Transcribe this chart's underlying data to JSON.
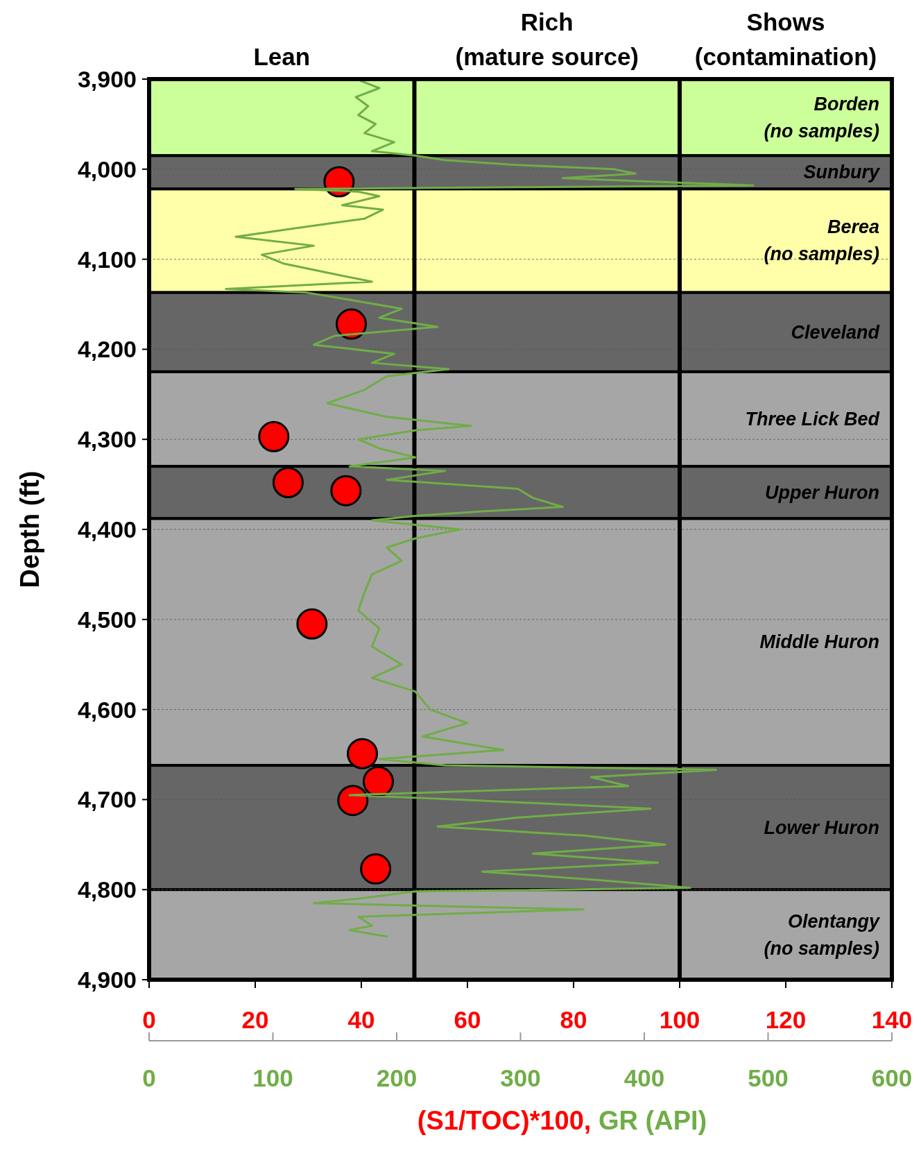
{
  "chart_data": {
    "type": "scatter",
    "ylabel": "Depth (ft)",
    "xlabel": "(S1/TOC)*100,",
    "x2label": "GR (API)",
    "xlim": [
      0,
      140
    ],
    "xticks": [
      0,
      20,
      40,
      60,
      80,
      100,
      120,
      140
    ],
    "x2lim": [
      0,
      600
    ],
    "x2ticks": [
      0,
      100,
      200,
      300,
      400,
      500,
      600
    ],
    "ylim": [
      4900,
      3900
    ],
    "yticks": [
      {
        "value": 3900,
        "label": "3,900"
      },
      {
        "value": 4000,
        "label": "4,000"
      },
      {
        "value": 4100,
        "label": "4,100"
      },
      {
        "value": 4200,
        "label": "4,200"
      },
      {
        "value": 4300,
        "label": "4,300"
      },
      {
        "value": 4400,
        "label": "4,400"
      },
      {
        "value": 4500,
        "label": "4,500"
      },
      {
        "value": 4600,
        "label": "4,600"
      },
      {
        "value": 4700,
        "label": "4,700"
      },
      {
        "value": 4800,
        "label": "4,800"
      },
      {
        "value": 4900,
        "label": "4,900"
      }
    ],
    "grid": "y",
    "marker": "circle",
    "bands": [
      {
        "axis": "y",
        "from": 3900,
        "to": 3985,
        "label": "Borden\n(no samples)",
        "color": "#ccff99"
      },
      {
        "axis": "y",
        "from": 3985,
        "to": 4022,
        "label": "Sunbury",
        "color": "#666666"
      },
      {
        "axis": "y",
        "from": 4022,
        "to": 4137,
        "label": "Berea\n(no samples)",
        "color": "#ffffaa"
      },
      {
        "axis": "y",
        "from": 4137,
        "to": 4225,
        "label": "Cleveland",
        "color": "#666666"
      },
      {
        "axis": "y",
        "from": 4225,
        "to": 4330,
        "label": "Three Lick Bed",
        "color": "#a6a6a6"
      },
      {
        "axis": "y",
        "from": 4330,
        "to": 4388,
        "label": "Upper Huron",
        "color": "#666666"
      },
      {
        "axis": "y",
        "from": 4388,
        "to": 4662,
        "label": "Middle Huron",
        "color": "#a6a6a6"
      },
      {
        "axis": "y",
        "from": 4662,
        "to": 4800,
        "label": "Lower Huron",
        "color": "#666666"
      },
      {
        "axis": "y",
        "from": 4800,
        "to": 4900,
        "label": "Olentangy\n(no samples)",
        "color": "#a6a6a6"
      }
    ],
    "ref_lines": [
      {
        "axis": "x",
        "value": 50,
        "color": "#000000"
      },
      {
        "axis": "x",
        "value": 100,
        "color": "#000000"
      }
    ],
    "annotations": [
      {
        "text": "Lean",
        "x": 25,
        "y": 3900
      },
      {
        "text": "Rich\n(mature source)",
        "x": 75,
        "y": 3900
      },
      {
        "text": "Shows\n(contamination)",
        "x": 120,
        "y": 3900
      }
    ],
    "series": [
      {
        "type": "line",
        "axis": "x2",
        "color": "#70ad47",
        "marker": "none",
        "values": [
          3902,
          3910,
          3920,
          3930,
          3940,
          3950,
          3960,
          3970,
          3980,
          3985,
          3990,
          3995,
          4000,
          4005,
          4010,
          4015,
          4018,
          4020,
          4022,
          4025,
          4030,
          4040,
          4045,
          4055,
          4065,
          4075,
          4085,
          4095,
          4105,
          4115,
          4125,
          4133,
          4137,
          4145,
          4155,
          4165,
          4175,
          4185,
          4195,
          4205,
          4215,
          4222,
          4230,
          4245,
          4260,
          4275,
          4285,
          4290,
          4300,
          4310,
          4320,
          4330,
          4335,
          4345,
          4355,
          4365,
          4375,
          4380,
          4385,
          4390,
          4400,
          4410,
          4420,
          4435,
          4450,
          4470,
          4490,
          4510,
          4530,
          4550,
          4565,
          4580,
          4600,
          4615,
          4630,
          4645,
          4655,
          4662,
          4667,
          4675,
          4685,
          4695,
          4700,
          4710,
          4720,
          4730,
          4740,
          4750,
          4760,
          4770,
          4780,
          4790,
          4798,
          4802,
          4810,
          4815,
          4822,
          4830,
          4840,
          4845,
          4852
        ],
        "x": [
          171,
          186,
          167,
          177,
          169,
          183,
          174,
          198,
          180,
          215,
          239,
          292,
          375,
          393,
          334,
          428,
          488,
          298,
          118,
          169,
          186,
          156,
          189,
          174,
          121,
          70,
          133,
          91,
          109,
          144,
          180,
          62,
          127,
          162,
          204,
          186,
          233,
          150,
          133,
          198,
          180,
          242,
          192,
          174,
          144,
          192,
          260,
          215,
          169,
          186,
          215,
          162,
          239,
          192,
          298,
          310,
          334,
          269,
          215,
          180,
          251,
          215,
          192,
          204,
          180,
          174,
          169,
          186,
          180,
          204,
          180,
          215,
          227,
          257,
          221,
          286,
          186,
          239,
          458,
          357,
          387,
          162,
          251,
          405,
          298,
          233,
          351,
          417,
          310,
          411,
          269,
          369,
          437,
          215,
          169,
          133,
          351,
          169,
          180,
          162,
          192
        ]
      },
      {
        "color": "#ff0000",
        "values": [
          4014,
          4172,
          4297,
          4348,
          4357,
          4505,
          4649,
          4680,
          4701,
          4777
        ],
        "x": [
          35.8,
          38.1,
          23.5,
          26.2,
          37.1,
          30.7,
          40.2,
          43.2,
          38.4,
          42.7
        ]
      }
    ]
  }
}
